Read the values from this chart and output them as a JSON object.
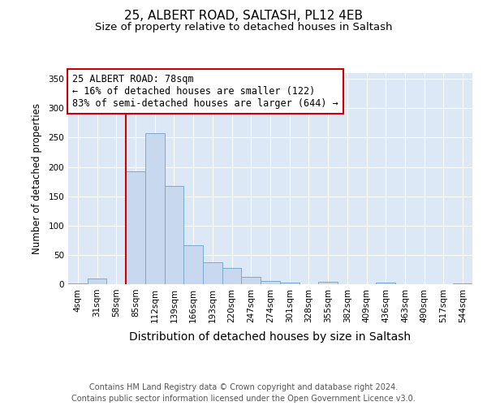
{
  "title_line1": "25, ALBERT ROAD, SALTASH, PL12 4EB",
  "title_line2": "Size of property relative to detached houses in Saltash",
  "xlabel": "Distribution of detached houses by size in Saltash",
  "ylabel": "Number of detached properties",
  "footnote1": "Contains HM Land Registry data © Crown copyright and database right 2024.",
  "footnote2": "Contains public sector information licensed under the Open Government Licence v3.0.",
  "annotation_line1": "25 ALBERT ROAD: 78sqm",
  "annotation_line2": "← 16% of detached houses are smaller (122)",
  "annotation_line3": "83% of semi-detached houses are larger (644) →",
  "bin_labels": [
    "4sqm",
    "31sqm",
    "58sqm",
    "85sqm",
    "112sqm",
    "139sqm",
    "166sqm",
    "193sqm",
    "220sqm",
    "247sqm",
    "274sqm",
    "301sqm",
    "328sqm",
    "355sqm",
    "382sqm",
    "409sqm",
    "436sqm",
    "463sqm",
    "490sqm",
    "517sqm",
    "544sqm"
  ],
  "bar_values": [
    2,
    10,
    0,
    192,
    258,
    168,
    66,
    38,
    28,
    12,
    6,
    3,
    0,
    4,
    0,
    0,
    3,
    0,
    0,
    0,
    2
  ],
  "bar_color": "#c8d8ee",
  "bar_edge_color": "#7aaad0",
  "red_line_bin_index": 3,
  "red_line_color": "#cc0000",
  "box_color": "#cc0000",
  "ylim": [
    0,
    360
  ],
  "yticks": [
    0,
    50,
    100,
    150,
    200,
    250,
    300,
    350
  ],
  "bg_color": "#ffffff",
  "plot_bg_color": "#dce8f5",
  "title_fontsize": 11,
  "subtitle_fontsize": 9.5,
  "ylabel_fontsize": 8.5,
  "xlabel_fontsize": 10,
  "tick_fontsize": 7.5,
  "footnote_fontsize": 7,
  "annot_fontsize": 8.5
}
